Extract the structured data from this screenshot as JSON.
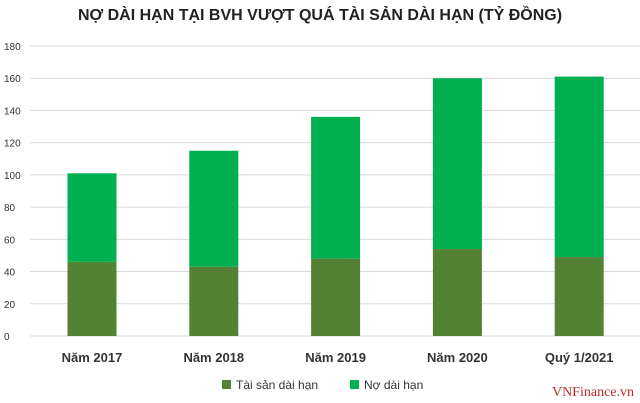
{
  "chart_data": {
    "type": "bar",
    "stacked": true,
    "title": "NỢ DÀI HẠN TẠI BVH VƯỢT QUÁ TÀI SẢN DÀI HẠN (TỶ ĐỒNG)",
    "categories": [
      "Năm 2017",
      "Năm 2018",
      "Năm 2019",
      "Năm 2020",
      "Quý 1/2021"
    ],
    "series": [
      {
        "name": "Tài sản dài hạn",
        "values": [
          46,
          43,
          48,
          54,
          49
        ],
        "color": "#548235"
      },
      {
        "name": "Nợ dài hạn",
        "values": [
          55,
          72,
          88,
          106,
          112
        ],
        "color": "#00b050"
      }
    ],
    "ylim": [
      0,
      180
    ],
    "yticks": [
      0,
      20,
      40,
      60,
      80,
      100,
      120,
      140,
      160,
      180
    ],
    "grid": true,
    "legend": "bottom",
    "xlabel": "",
    "ylabel": ""
  },
  "watermark": "VNFinance.vn"
}
